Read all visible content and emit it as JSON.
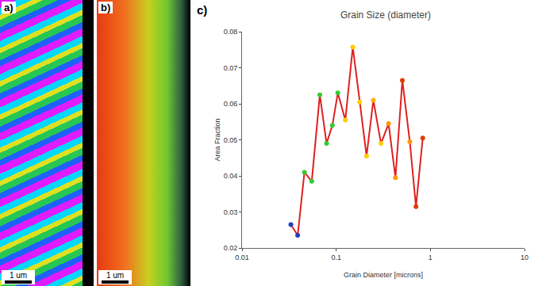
{
  "panels": [
    {
      "label": "a)",
      "scale_bar": "1 um"
    },
    {
      "label": "b)",
      "scale_bar": "1 um"
    },
    {
      "label": "c)"
    }
  ],
  "chart_data": {
    "type": "line",
    "title": "Grain Size (diameter)",
    "x_label": "Grain Diameter [microns]",
    "y_label": "Area Fraction",
    "x": [
      0.033,
      0.039,
      0.046,
      0.055,
      0.067,
      0.079,
      0.091,
      0.104,
      0.125,
      0.15,
      0.178,
      0.21,
      0.248,
      0.299,
      0.36,
      0.426,
      0.504,
      0.605,
      0.703,
      0.83
    ],
    "values": [
      0.0265,
      0.0235,
      0.041,
      0.0385,
      0.0625,
      0.049,
      0.054,
      0.063,
      0.0555,
      0.0757,
      0.0605,
      0.0455,
      0.061,
      0.049,
      0.0545,
      0.0395,
      0.0665,
      0.0495,
      0.0315,
      0.0505
    ],
    "color": "#e02020",
    "colors": [
      "#1f3fbf",
      "#1f3fbf",
      "#33cc33",
      "#33cc33",
      "#33cc33",
      "#33cc33",
      "#33cc33",
      "#33cc33",
      "#ffcc00",
      "#ffcc00",
      "#ffcc00",
      "#ffcc00",
      "#ffb000",
      "#ffcc00",
      "#ff9900",
      "#ff9900",
      "#e03c00",
      "#ff9900",
      "#e03c00",
      "#e03c00"
    ],
    "marker": "circle",
    "line_style": "solid",
    "log": "x",
    "xlim": [
      0.01,
      10
    ],
    "xticks": [
      0.01,
      0.1,
      1,
      10
    ],
    "ylim": [
      0.02,
      0.08
    ],
    "yticks": [
      0.02,
      0.03,
      0.04,
      0.05,
      0.06,
      0.07,
      0.08
    ],
    "grid": false
  }
}
